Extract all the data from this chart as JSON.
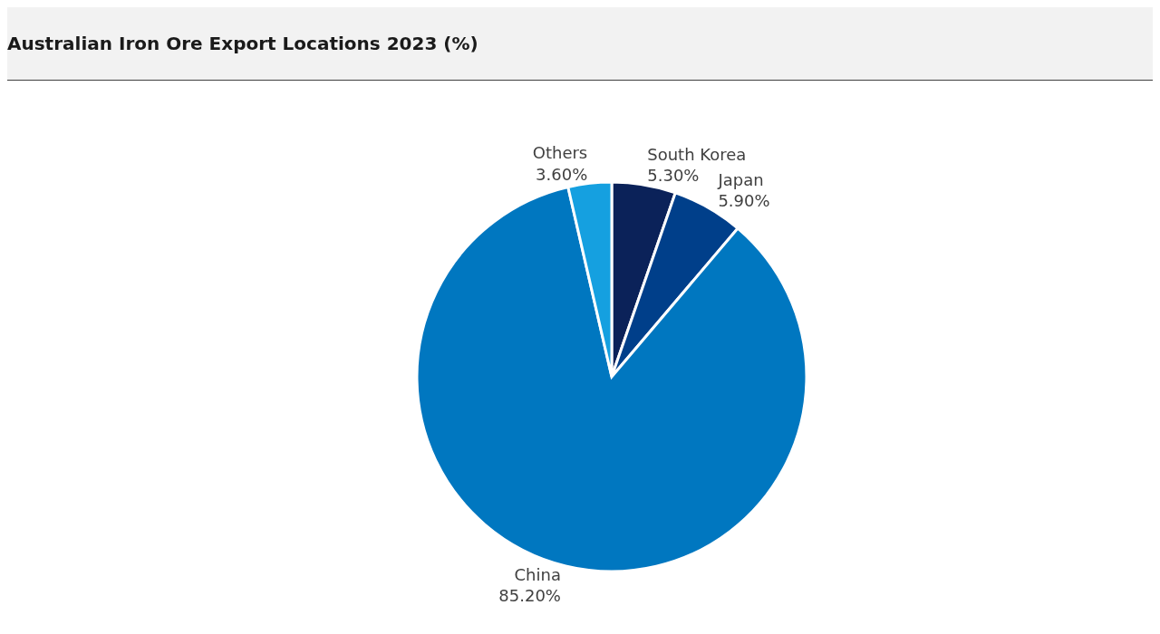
{
  "chart_data": {
    "type": "pie",
    "title": "Australian Iron Ore Export Locations 2023 (%)",
    "categories": [
      "South Korea",
      "Japan",
      "China",
      "Others"
    ],
    "values": [
      5.3,
      5.9,
      85.2,
      3.6
    ],
    "colors": [
      "#0b2259",
      "#003f8a",
      "#0077c0",
      "#15a0e0"
    ],
    "value_labels": [
      "5.30%",
      "5.90%",
      "85.20%",
      "3.60%"
    ]
  }
}
